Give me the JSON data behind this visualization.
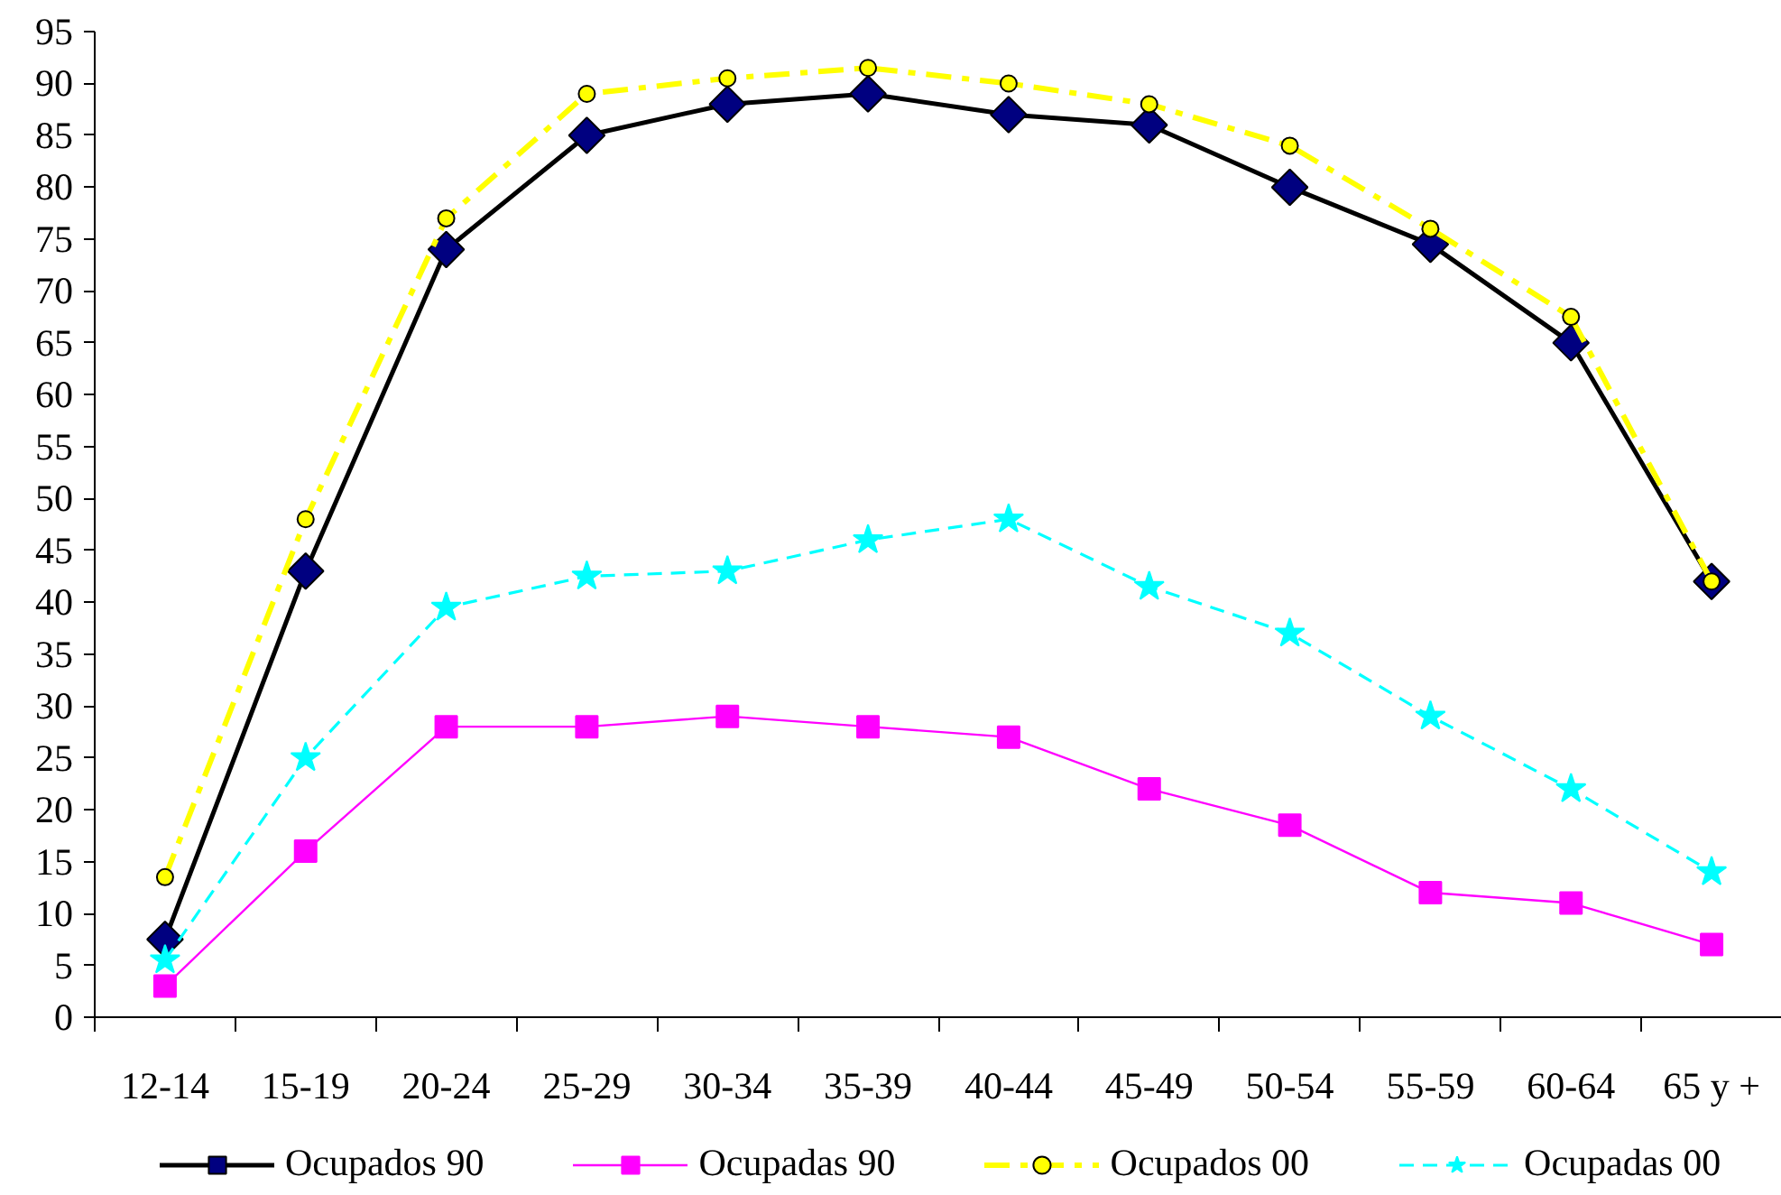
{
  "chart_data": {
    "type": "line",
    "categories": [
      "12-14",
      "15-19",
      "20-24",
      "25-29",
      "30-34",
      "35-39",
      "40-44",
      "45-49",
      "50-54",
      "55-59",
      "60-64",
      "65 y +"
    ],
    "ylim": [
      0,
      95
    ],
    "yticks": [
      0,
      5,
      10,
      15,
      20,
      25,
      30,
      35,
      40,
      45,
      50,
      55,
      60,
      65,
      70,
      75,
      80,
      85,
      90,
      95
    ],
    "legend": "bottom",
    "series": [
      {
        "name": "Ocupados 90",
        "color": "#000000",
        "colors": [
          "#000080",
          "#000080",
          "#000080",
          "#000080",
          "#000080",
          "#000080",
          "#000080",
          "#000080",
          "#000080",
          "#000080",
          "#000080",
          "#000080"
        ],
        "marker": "diamond",
        "line_style": "solid",
        "values": [
          7.5,
          43,
          74,
          85,
          88,
          89,
          87,
          86,
          80,
          74.5,
          65,
          42
        ]
      },
      {
        "name": "Ocupadas 90",
        "color": "#ff00ff",
        "marker": "square",
        "line_style": "solid",
        "values": [
          3,
          16,
          28,
          28,
          29,
          28,
          27,
          22,
          18.5,
          12,
          11,
          7
        ]
      },
      {
        "name": "Ocupados 00",
        "color": "#ffff00",
        "marker": "circle",
        "line_style": "dashdot",
        "values": [
          13.5,
          48,
          77,
          89,
          90.5,
          91.5,
          90,
          88,
          84,
          76,
          67.5,
          42
        ]
      },
      {
        "name": "Ocupadas 00",
        "color": "#00ffff",
        "marker": "star",
        "line_style": "dashed",
        "values": [
          5.5,
          25,
          39.5,
          42.5,
          43,
          46,
          48,
          41.5,
          37,
          29,
          22,
          14
        ]
      }
    ]
  }
}
